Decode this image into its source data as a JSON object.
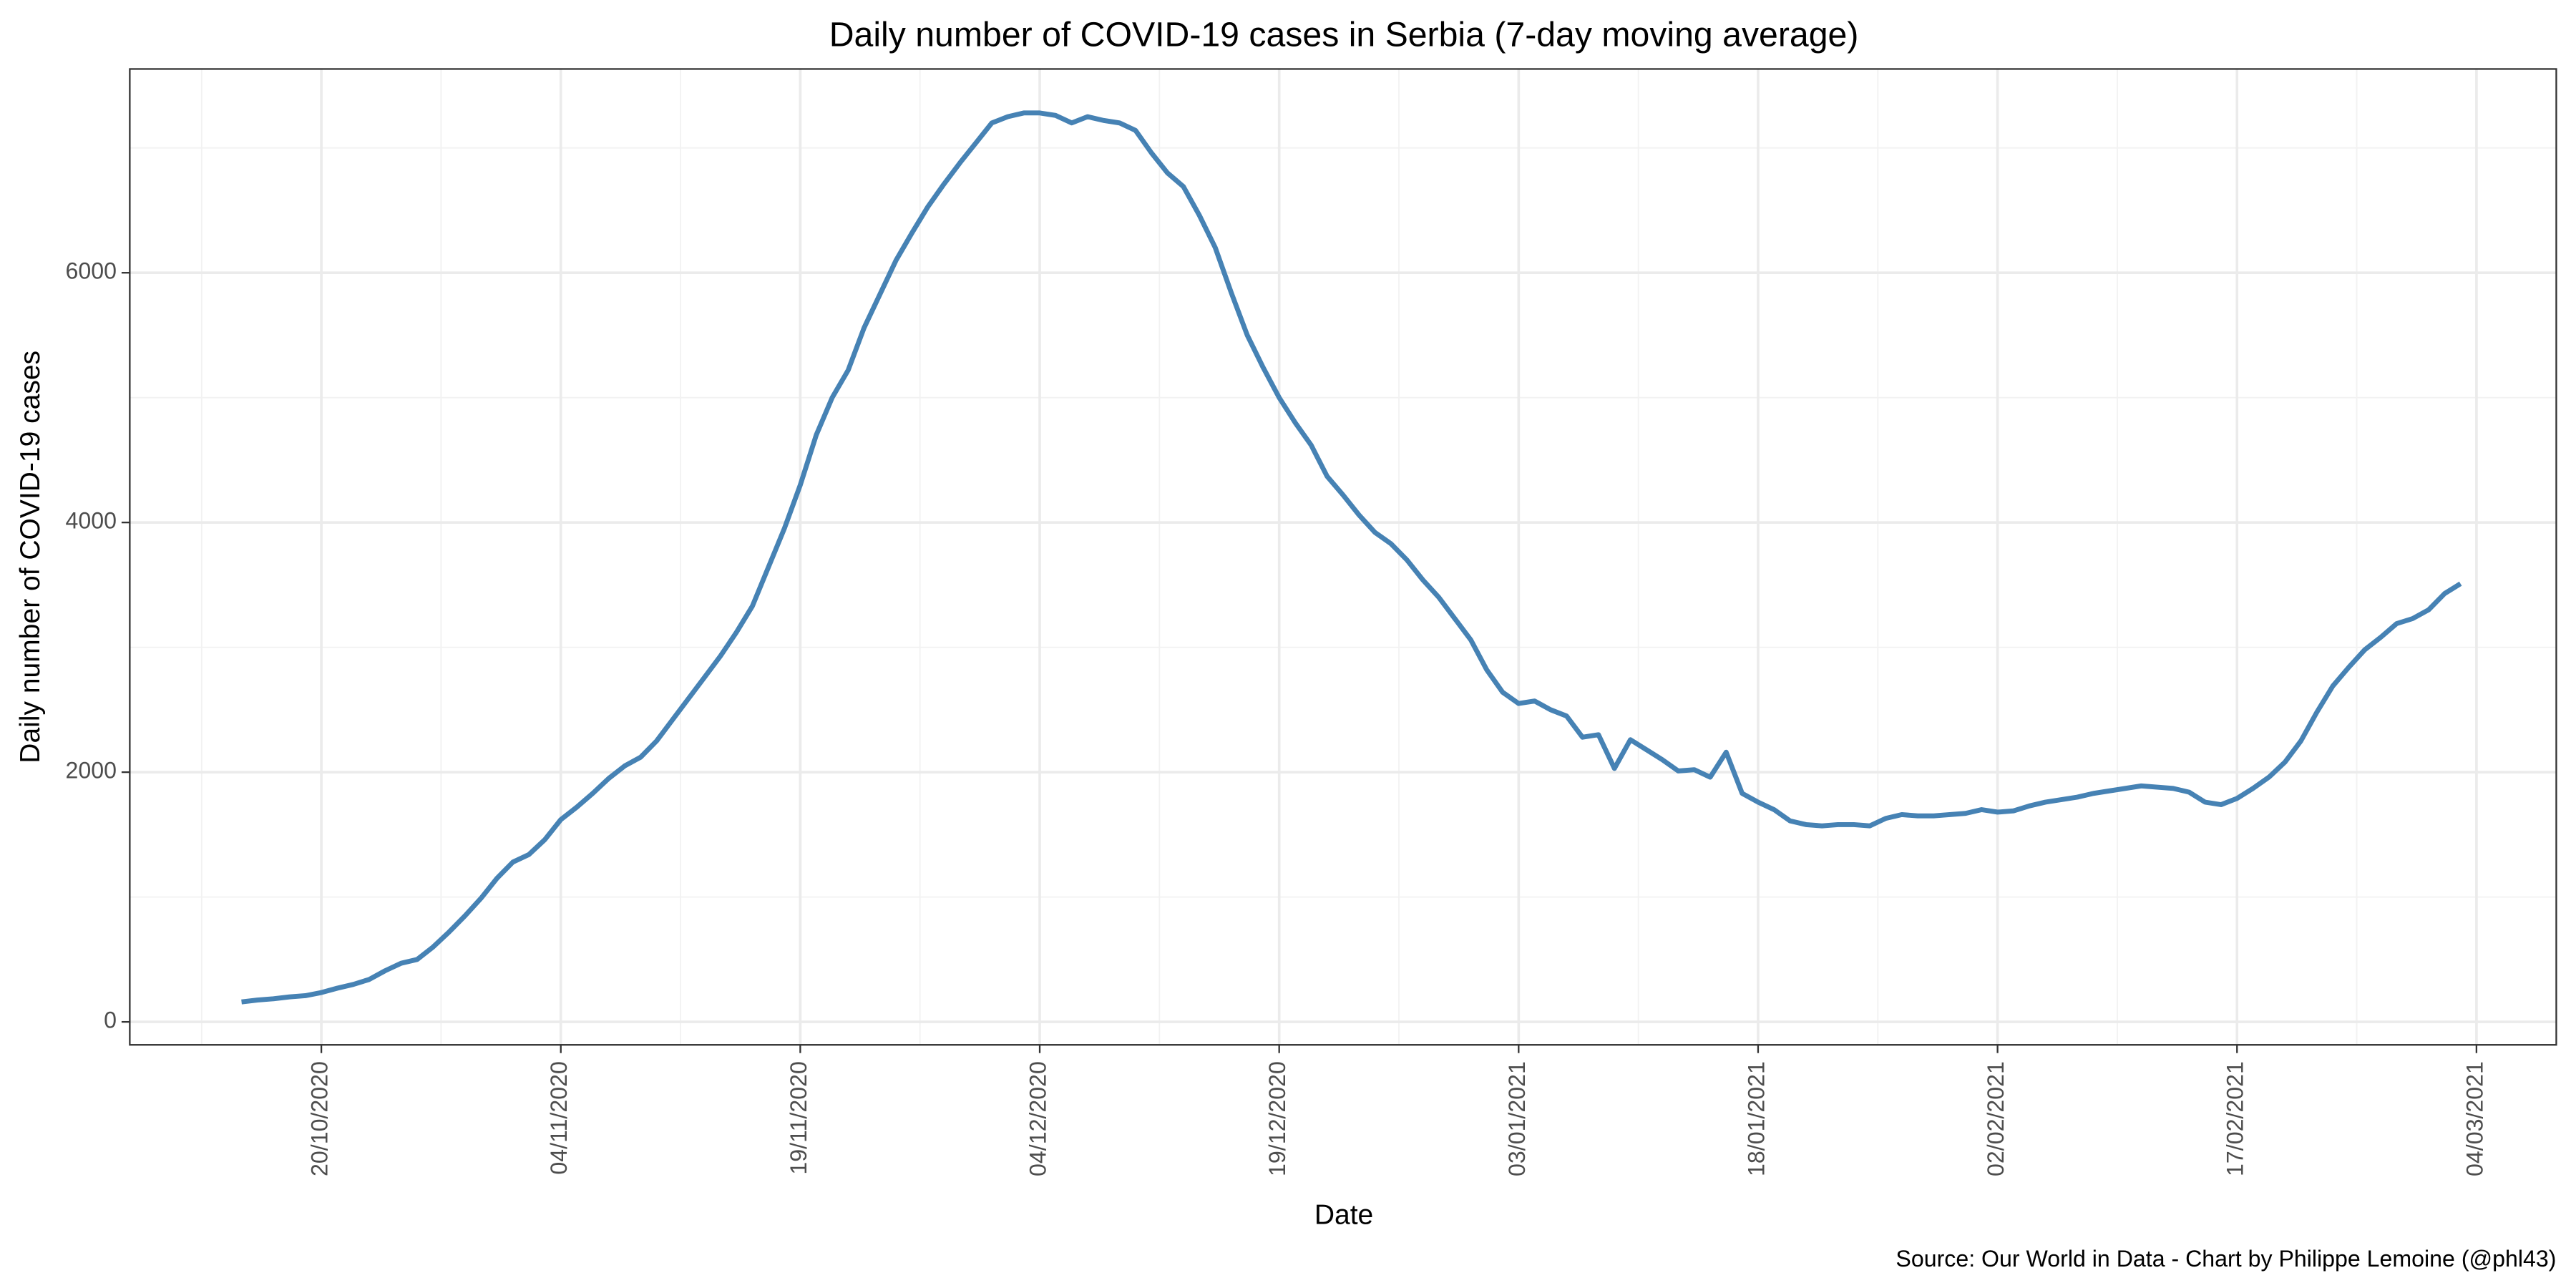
{
  "chart_data": {
    "type": "line",
    "title": "Daily number of COVID-19 cases in Serbia (7-day moving average)",
    "x_label": "Date",
    "y_label": "Daily number of COVID-19 cases",
    "caption": "Source: Our World in Data - Chart by Philippe Lemoine (@phl43)",
    "x": [
      "15/10/2020",
      "16/10/2020",
      "17/10/2020",
      "18/10/2020",
      "19/10/2020",
      "20/10/2020",
      "21/10/2020",
      "22/10/2020",
      "23/10/2020",
      "24/10/2020",
      "25/10/2020",
      "26/10/2020",
      "27/10/2020",
      "28/10/2020",
      "29/10/2020",
      "30/10/2020",
      "31/10/2020",
      "01/11/2020",
      "02/11/2020",
      "03/11/2020",
      "04/11/2020",
      "05/11/2020",
      "06/11/2020",
      "07/11/2020",
      "08/11/2020",
      "09/11/2020",
      "10/11/2020",
      "11/11/2020",
      "12/11/2020",
      "13/11/2020",
      "14/11/2020",
      "15/11/2020",
      "16/11/2020",
      "17/11/2020",
      "18/11/2020",
      "19/11/2020",
      "20/11/2020",
      "21/11/2020",
      "22/11/2020",
      "23/11/2020",
      "24/11/2020",
      "25/11/2020",
      "26/11/2020",
      "27/11/2020",
      "28/11/2020",
      "29/11/2020",
      "30/11/2020",
      "01/12/2020",
      "02/12/2020",
      "03/12/2020",
      "04/12/2020",
      "05/12/2020",
      "06/12/2020",
      "07/12/2020",
      "08/12/2020",
      "09/12/2020",
      "10/12/2020",
      "11/12/2020",
      "12/12/2020",
      "13/12/2020",
      "14/12/2020",
      "15/12/2020",
      "16/12/2020",
      "17/12/2020",
      "18/12/2020",
      "19/12/2020",
      "20/12/2020",
      "21/12/2020",
      "22/12/2020",
      "23/12/2020",
      "24/12/2020",
      "25/12/2020",
      "26/12/2020",
      "27/12/2020",
      "28/12/2020",
      "29/12/2020",
      "30/12/2020",
      "31/12/2020",
      "01/01/2021",
      "02/01/2021",
      "03/01/2021",
      "04/01/2021",
      "05/01/2021",
      "06/01/2021",
      "07/01/2021",
      "08/01/2021",
      "09/01/2021",
      "10/01/2021",
      "11/01/2021",
      "12/01/2021",
      "13/01/2021",
      "14/01/2021",
      "15/01/2021",
      "16/01/2021",
      "17/01/2021",
      "18/01/2021",
      "19/01/2021",
      "20/01/2021",
      "21/01/2021",
      "22/01/2021",
      "23/01/2021",
      "24/01/2021",
      "25/01/2021",
      "26/01/2021",
      "27/01/2021",
      "28/01/2021",
      "29/01/2021",
      "30/01/2021",
      "31/01/2021",
      "01/02/2021",
      "02/02/2021",
      "03/02/2021",
      "04/02/2021",
      "05/02/2021",
      "06/02/2021",
      "07/02/2021",
      "08/02/2021",
      "09/02/2021",
      "10/02/2021",
      "11/02/2021",
      "12/02/2021",
      "13/02/2021",
      "14/02/2021",
      "15/02/2021",
      "16/02/2021",
      "17/02/2021",
      "18/02/2021",
      "19/02/2021",
      "20/02/2021",
      "21/02/2021",
      "22/02/2021",
      "23/02/2021",
      "24/02/2021",
      "25/02/2021",
      "26/02/2021",
      "27/02/2021",
      "28/02/2021",
      "01/03/2021",
      "02/03/2021",
      "03/03/2021"
    ],
    "series": [
      {
        "name": "Daily cases",
        "color": "#4682b4",
        "values": [
          160,
          175,
          185,
          200,
          210,
          235,
          270,
          300,
          340,
          410,
          470,
          500,
          600,
          720,
          850,
          990,
          1150,
          1280,
          1340,
          1460,
          1620,
          1720,
          1830,
          1950,
          2050,
          2120,
          2250,
          2420,
          2590,
          2760,
          2930,
          3120,
          3330,
          3640,
          3950,
          4300,
          4700,
          5000,
          5220,
          5560,
          5830,
          6100,
          6320,
          6530,
          6710,
          6880,
          7040,
          7200,
          7250,
          7280,
          7280,
          7260,
          7200,
          7250,
          7220,
          7200,
          7140,
          6960,
          6800,
          6690,
          6460,
          6200,
          5840,
          5500,
          5240,
          5000,
          4800,
          4620,
          4370,
          4220,
          4060,
          3920,
          3830,
          3700,
          3540,
          3400,
          3230,
          3060,
          2820,
          2640,
          2550,
          2570,
          2500,
          2450,
          2280,
          2300,
          2030,
          2260,
          2180,
          2100,
          2010,
          2020,
          1960,
          2160,
          1830,
          1760,
          1700,
          1610,
          1580,
          1570,
          1580,
          1580,
          1570,
          1630,
          1660,
          1650,
          1650,
          1660,
          1670,
          1700,
          1680,
          1690,
          1730,
          1760,
          1780,
          1800,
          1830,
          1850,
          1870,
          1890,
          1880,
          1870,
          1840,
          1760,
          1740,
          1790,
          1870,
          1960,
          2080,
          2250,
          2480,
          2690,
          2840,
          2980,
          3080,
          3190,
          3230,
          3300,
          3430,
          3510
        ]
      }
    ],
    "xlim": [
      "08/10/2020",
      "09/03/2021"
    ],
    "xticks": [
      "20/10/2020",
      "04/11/2020",
      "19/11/2020",
      "04/12/2020",
      "19/12/2020",
      "03/01/2021",
      "18/01/2021",
      "02/02/2021",
      "17/02/2021",
      "04/03/2021"
    ],
    "ylim": [
      -184,
      7632
    ],
    "yticks": [
      0,
      2000,
      4000,
      6000
    ],
    "grid": true
  }
}
